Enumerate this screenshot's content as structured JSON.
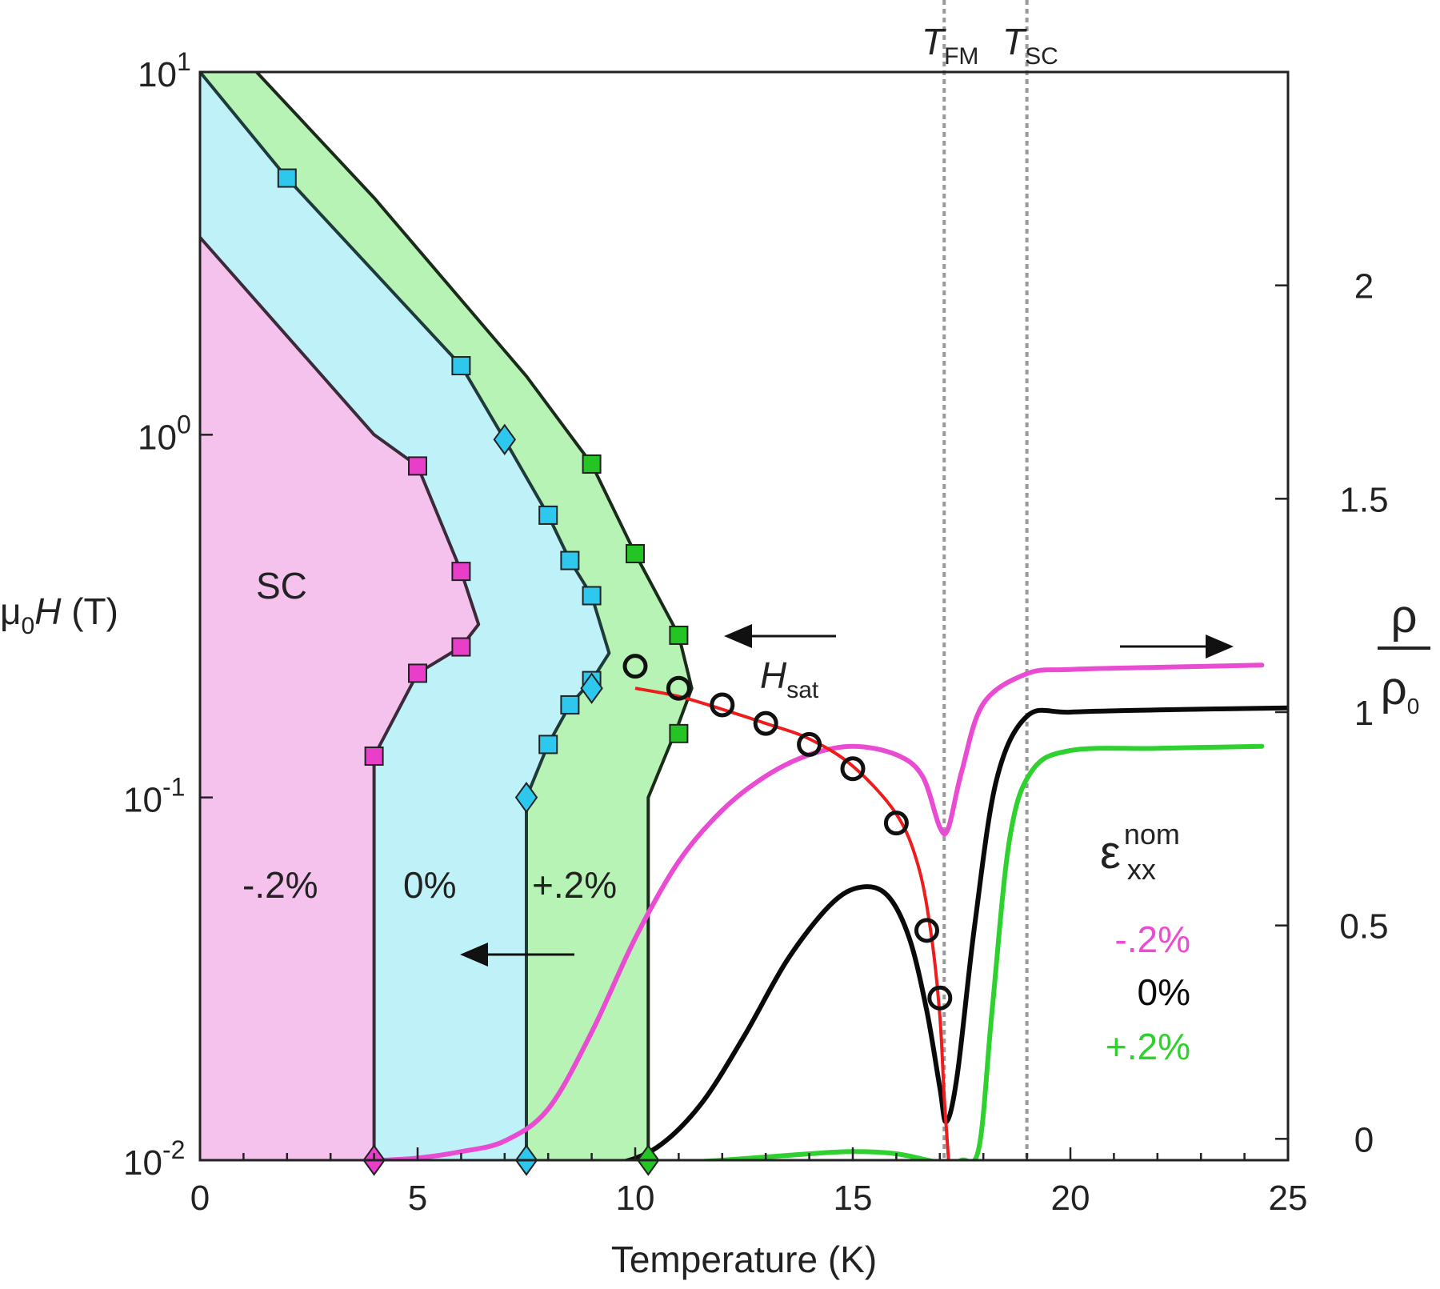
{
  "chart_data": {
    "type": "line",
    "xlabel": "Temperature (K)",
    "ylabel_left": {
      "prefix": "μ",
      "sub": "0",
      "italic": "H",
      "suffix": " (T)"
    },
    "ylabel_right": {
      "numerator": "ρ",
      "denominator": "ρ",
      "denominator_sub": "0"
    },
    "xlim": [
      0,
      25
    ],
    "ylim_left": [
      0.01,
      10
    ],
    "yscale_left": "log",
    "ylim_right": [
      -0.05,
      2.5
    ],
    "x_ticks": [
      "0",
      "5",
      "10",
      "15",
      "20",
      "25"
    ],
    "y_left_ticks": [
      {
        "base": "10",
        "exp": "-2",
        "value": 0.01
      },
      {
        "base": "10",
        "exp": "-1",
        "value": 0.1
      },
      {
        "base": "10",
        "exp": "0",
        "value": 1
      },
      {
        "base": "10",
        "exp": "1",
        "value": 10
      }
    ],
    "y_right_ticks": [
      "0",
      "0.5",
      "1",
      "1.5",
      "2"
    ],
    "y_right_values": [
      0,
      0.5,
      1,
      1.5,
      2
    ],
    "vlines": [
      {
        "x": 17.1,
        "label_italic": "T",
        "label_sub": "FM"
      },
      {
        "x": 19.0,
        "label_italic": "T",
        "label_sub": "SC"
      }
    ],
    "regions": [
      {
        "name": "-.2%",
        "color": "#f5c2ee",
        "line": "#3a2a3a"
      },
      {
        "name": "0%",
        "color": "#bff2f8",
        "line": "#1f3a3a"
      },
      {
        "name": "+.2%",
        "color": "#b7f3b5",
        "line": "#1b2b1b"
      }
    ],
    "region_label_sc": "SC",
    "boundaries": {
      "minus02": [
        [
          0,
          3.5
        ],
        [
          4,
          1.0
        ],
        [
          5,
          0.82
        ],
        [
          6,
          0.42
        ],
        [
          6.4,
          0.3
        ],
        [
          6,
          0.26
        ],
        [
          5,
          0.22
        ],
        [
          4,
          0.13
        ],
        [
          4,
          0.11
        ],
        [
          4,
          0.01
        ]
      ],
      "zero": [
        [
          0,
          10
        ],
        [
          2,
          5.1
        ],
        [
          6,
          1.55
        ],
        [
          7,
          0.97
        ],
        [
          8,
          0.6
        ],
        [
          8.5,
          0.45
        ],
        [
          9,
          0.36
        ],
        [
          9.4,
          0.25
        ],
        [
          9,
          0.21
        ],
        [
          8.5,
          0.18
        ],
        [
          8,
          0.14
        ],
        [
          7.5,
          0.1
        ],
        [
          7.5,
          0.01
        ]
      ],
      "plus02": [
        [
          1.3,
          10
        ],
        [
          4,
          4.5
        ],
        [
          7.5,
          1.45
        ],
        [
          9,
          0.83
        ],
        [
          10,
          0.47
        ],
        [
          11,
          0.28
        ],
        [
          11.3,
          0.2
        ],
        [
          11,
          0.16
        ],
        [
          10.3,
          0.1
        ],
        [
          10.3,
          0.01
        ]
      ]
    },
    "markers": {
      "minus02": {
        "squares": [
          [
            5,
            0.82
          ],
          [
            6,
            0.42
          ],
          [
            6,
            0.26
          ],
          [
            5,
            0.22
          ],
          [
            4,
            0.13
          ]
        ],
        "diamonds": [
          [
            4,
            0.01
          ]
        ]
      },
      "zero": {
        "squares": [
          [
            2,
            5.1
          ],
          [
            6,
            1.55
          ],
          [
            8,
            0.6
          ],
          [
            8.5,
            0.45
          ],
          [
            9,
            0.36
          ],
          [
            9,
            0.21
          ],
          [
            8.5,
            0.18
          ],
          [
            8,
            0.14
          ]
        ],
        "diamonds": [
          [
            7,
            0.97
          ],
          [
            9,
            0.2
          ],
          [
            7.5,
            0.1
          ],
          [
            7.5,
            0.01
          ]
        ]
      },
      "plus02": {
        "squares": [
          [
            9,
            0.83
          ],
          [
            10,
            0.47
          ],
          [
            11,
            0.28
          ],
          [
            11,
            0.15
          ]
        ],
        "diamonds": [
          [
            10.3,
            0.01
          ]
        ]
      }
    },
    "hsat": {
      "label_italic": "H",
      "label_sub": "sat",
      "points": [
        [
          10,
          0.23
        ],
        [
          11,
          0.2
        ],
        [
          12,
          0.18
        ],
        [
          13,
          0.16
        ],
        [
          14,
          0.14
        ],
        [
          15,
          0.12
        ],
        [
          16,
          0.085
        ],
        [
          16.7,
          0.043
        ],
        [
          17,
          0.028
        ]
      ],
      "fit": [
        [
          10,
          0.2
        ],
        [
          11,
          0.19
        ],
        [
          12,
          0.175
        ],
        [
          13,
          0.16
        ],
        [
          14,
          0.145
        ],
        [
          15,
          0.122
        ],
        [
          16,
          0.09
        ],
        [
          16.5,
          0.065
        ],
        [
          16.8,
          0.042
        ],
        [
          17,
          0.025
        ],
        [
          17.1,
          0.015
        ],
        [
          17.2,
          0.01
        ]
      ],
      "fit_color": "#ee1c1c"
    },
    "series": [
      {
        "name": "-.2%",
        "color": "#e94bd2",
        "points": [
          [
            4.2,
            -0.05
          ],
          [
            5,
            -0.045
          ],
          [
            6,
            -0.03
          ],
          [
            7,
            -0.005
          ],
          [
            8,
            0.07
          ],
          [
            9,
            0.25
          ],
          [
            10,
            0.47
          ],
          [
            11,
            0.65
          ],
          [
            12,
            0.77
          ],
          [
            13,
            0.85
          ],
          [
            14,
            0.9
          ],
          [
            15,
            0.92
          ],
          [
            16,
            0.9
          ],
          [
            16.6,
            0.85
          ],
          [
            17,
            0.73
          ],
          [
            17.2,
            0.73
          ],
          [
            17.5,
            0.86
          ],
          [
            18,
            1.02
          ],
          [
            19,
            1.09
          ],
          [
            20,
            1.1
          ],
          [
            22,
            1.105
          ],
          [
            24.4,
            1.11
          ]
        ]
      },
      {
        "name": "0%",
        "color": "#0a0a0a",
        "points": [
          [
            7.8,
            -0.07
          ],
          [
            8.5,
            -0.07
          ],
          [
            9.5,
            -0.06
          ],
          [
            10.5,
            -0.02
          ],
          [
            11.5,
            0.08
          ],
          [
            12.5,
            0.24
          ],
          [
            13.5,
            0.42
          ],
          [
            14.5,
            0.55
          ],
          [
            15.2,
            0.59
          ],
          [
            15.8,
            0.57
          ],
          [
            16.3,
            0.47
          ],
          [
            16.7,
            0.3
          ],
          [
            17,
            0.12
          ],
          [
            17.15,
            0.04
          ],
          [
            17.4,
            0.15
          ],
          [
            17.8,
            0.5
          ],
          [
            18.3,
            0.84
          ],
          [
            19,
            0.99
          ],
          [
            20,
            1.0
          ],
          [
            22,
            1.005
          ],
          [
            25,
            1.01
          ]
        ]
      },
      {
        "name": "+.2%",
        "color": "#2fd12f",
        "points": [
          [
            10.3,
            -0.06
          ],
          [
            12,
            -0.05
          ],
          [
            14,
            -0.035
          ],
          [
            15,
            -0.03
          ],
          [
            16,
            -0.035
          ],
          [
            17,
            -0.055
          ],
          [
            17.5,
            -0.05
          ],
          [
            17.9,
            -0.02
          ],
          [
            18.2,
            0.3
          ],
          [
            18.6,
            0.7
          ],
          [
            19.1,
            0.86
          ],
          [
            20,
            0.91
          ],
          [
            22,
            0.915
          ],
          [
            24.4,
            0.92
          ]
        ]
      }
    ],
    "legend": {
      "title_base": "ε",
      "title_sup": "nom",
      "title_sub": "xx",
      "entries": [
        {
          "label": "-.2%",
          "color": "#e94bd2"
        },
        {
          "label": "0%",
          "color": "#0a0a0a"
        },
        {
          "label": "+.2%",
          "color": "#2fd12f"
        }
      ]
    }
  }
}
